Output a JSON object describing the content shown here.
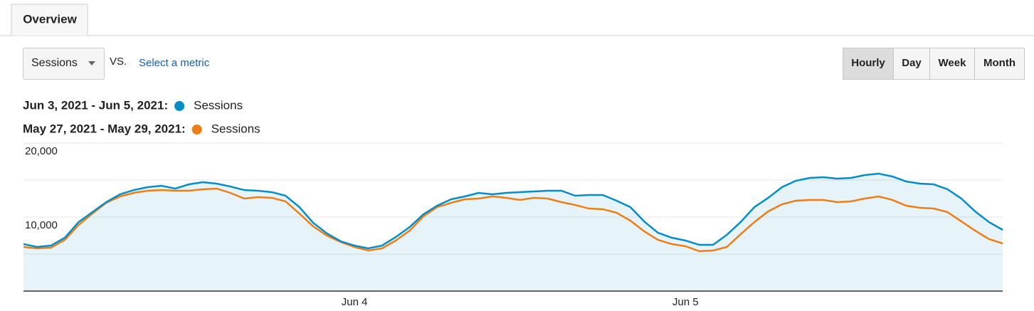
{
  "tabs": [
    "Overview"
  ],
  "metric_selector": "Sessions",
  "vs_label": "VS.",
  "secondary_metric_link": "Select a metric",
  "granularity_buttons": [
    "Hourly",
    "Day",
    "Week",
    "Month"
  ],
  "active_granularity": 0,
  "chart_data": {
    "type": "line",
    "categories": [
      null,
      null,
      null,
      null,
      null,
      null,
      null,
      null,
      null,
      null,
      null,
      null,
      null,
      null,
      null,
      null,
      null,
      null,
      null,
      null,
      null,
      null,
      null,
      null,
      "Jun 4",
      null,
      null,
      null,
      null,
      null,
      null,
      null,
      null,
      null,
      null,
      null,
      null,
      null,
      null,
      null,
      null,
      null,
      null,
      null,
      null,
      null,
      null,
      null,
      "Jun 5",
      null,
      null,
      null,
      null,
      null,
      null,
      null,
      null,
      null,
      null,
      null,
      null,
      null,
      null,
      null,
      null,
      null,
      null,
      null,
      null,
      null,
      null,
      null
    ],
    "series": [
      {
        "name": "Sessions",
        "date_range": "Jun 3, 2021 - Jun 5, 2021:",
        "color": "#058dc7",
        "fill": true,
        "values": [
          6350,
          5960,
          6150,
          7210,
          9330,
          10670,
          12020,
          13080,
          13650,
          14040,
          14230,
          13850,
          14420,
          14710,
          14520,
          14130,
          13650,
          13560,
          13370,
          12880,
          11350,
          9230,
          7790,
          6730,
          6150,
          5770,
          6150,
          7310,
          8650,
          10380,
          11540,
          12400,
          12790,
          13270,
          13080,
          13270,
          13370,
          13460,
          13560,
          13560,
          12880,
          12980,
          12980,
          12210,
          11350,
          9420,
          7880,
          7210,
          6830,
          6250,
          6250,
          7600,
          9330,
          11350,
          12600,
          14040,
          14900,
          15290,
          15380,
          15190,
          15290,
          15670,
          15870,
          15480,
          14810,
          14520,
          14420,
          13750,
          12500,
          10770,
          9330,
          8270
        ]
      },
      {
        "name": "Sessions",
        "date_range": "May 27, 2021 - May 29, 2021:",
        "color": "#ed7e17",
        "fill": false,
        "values": [
          5960,
          5770,
          5870,
          6920,
          8940,
          10480,
          11920,
          12790,
          13270,
          13560,
          13650,
          13560,
          13560,
          13750,
          13850,
          13270,
          12500,
          12690,
          12600,
          12120,
          10480,
          8750,
          7500,
          6630,
          5960,
          5480,
          5770,
          6830,
          8170,
          10100,
          11350,
          11920,
          12400,
          12500,
          12790,
          12600,
          12310,
          12600,
          12500,
          12020,
          11630,
          11150,
          11060,
          10580,
          9520,
          8080,
          6920,
          6350,
          6060,
          5380,
          5480,
          5960,
          7690,
          9330,
          10770,
          11730,
          12210,
          12310,
          12310,
          12020,
          12120,
          12500,
          12790,
          12310,
          11540,
          11250,
          11150,
          10670,
          9420,
          8170,
          7020,
          6440
        ]
      }
    ],
    "ylim": [
      0,
      20000
    ],
    "yticks": [
      {
        "value": 10000,
        "label": "10,000"
      },
      {
        "value": 20000,
        "label": "20,000"
      }
    ],
    "minor_grid": [
      5000,
      15000
    ],
    "grid": true
  }
}
